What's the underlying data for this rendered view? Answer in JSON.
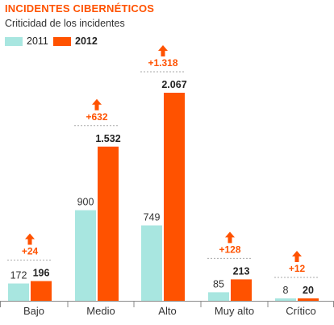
{
  "title": "INCIDENTES CIBERNÉTICOS",
  "subtitle": "Criticidad de los incidentes",
  "colors": {
    "series_2011": "#a8e6e0",
    "series_2012": "#ff5200",
    "accent": "#ff5200",
    "axis": "#8a8a8a",
    "text": "#333333"
  },
  "chart_data": {
    "type": "bar",
    "title": "INCIDENTES CIBERNÉTICOS",
    "subtitle": "Criticidad de los incidentes",
    "xlabel": "",
    "ylabel": "",
    "categories": [
      "Bajo",
      "Medio",
      "Alto",
      "Muy alto",
      "Crítico"
    ],
    "series": [
      {
        "name": "2011",
        "values": [
          172,
          900,
          749,
          85,
          8
        ],
        "labels": [
          "172",
          "900",
          "749",
          "85",
          "8"
        ]
      },
      {
        "name": "2012",
        "values": [
          196,
          1532,
          2067,
          213,
          20
        ],
        "labels": [
          "196",
          "1.532",
          "2.067",
          "213",
          "20"
        ]
      }
    ],
    "increases": [
      {
        "value": 24,
        "label": "+24"
      },
      {
        "value": 632,
        "label": "+632"
      },
      {
        "value": 1318,
        "label": "+1.318"
      },
      {
        "value": 128,
        "label": "+128"
      },
      {
        "value": 12,
        "label": "+12"
      }
    ],
    "ylim": [
      0,
      2067
    ],
    "grid": false,
    "legend_position": "top-left",
    "data_labels": true
  }
}
